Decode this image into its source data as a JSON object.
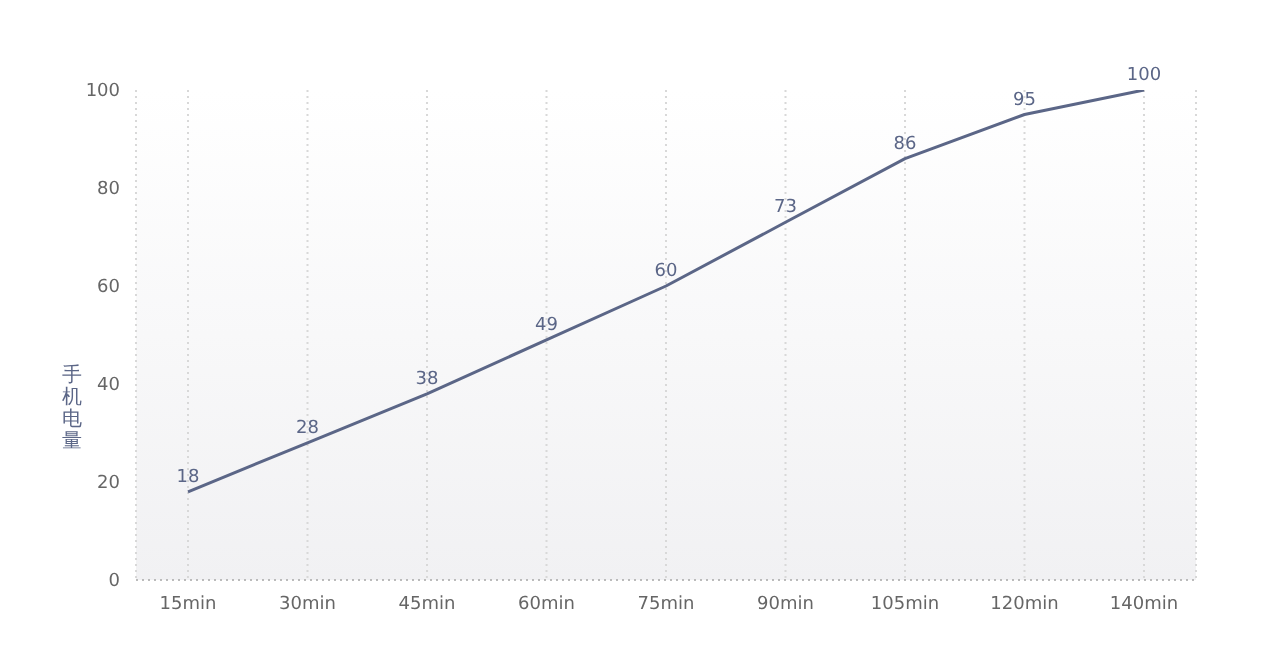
{
  "chart_data": {
    "type": "line",
    "ylabel": "手机电量",
    "categories": [
      "15min",
      "30min",
      "45min",
      "60min",
      "75min",
      "90min",
      "105min",
      "120min",
      "140min"
    ],
    "series": [
      {
        "color": "#5b6687",
        "values": [
          18,
          28,
          38,
          49,
          60,
          73,
          86,
          95,
          100
        ]
      }
    ],
    "ylim": [
      0,
      100
    ],
    "yticks": [
      0,
      20,
      40,
      60,
      80,
      100
    ],
    "grid": "x",
    "data_labels": true,
    "marker": "none",
    "line_style": "solid",
    "legend": false
  }
}
